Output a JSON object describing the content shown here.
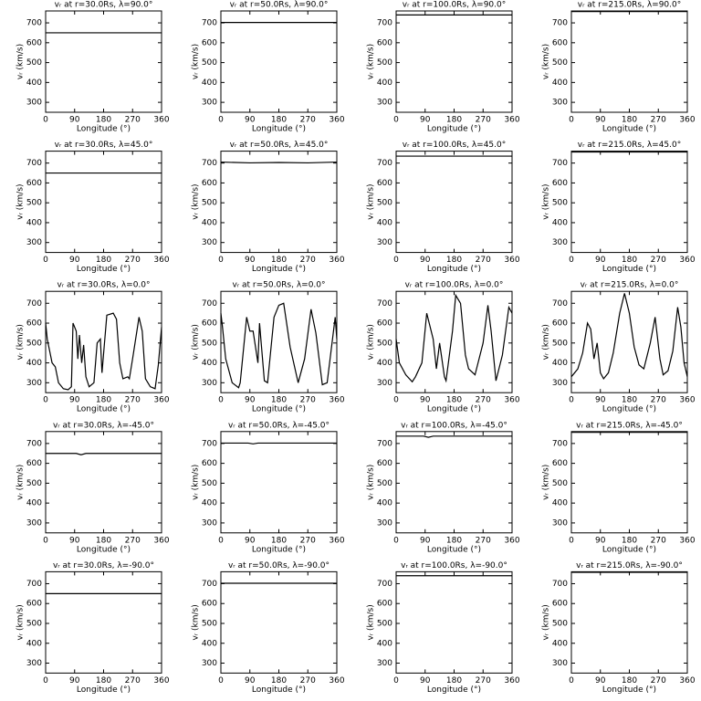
{
  "chart_data": [
    {
      "type": "line",
      "title": "vᵣ at r=30.0Rs, λ=90.0°",
      "xlabel": "Longitude (°)",
      "ylabel": "vᵣ (km/s)",
      "x": [
        0,
        360
      ],
      "values": [
        650,
        650
      ],
      "color": "#000000",
      "xlim": [
        0,
        360
      ],
      "ylim": [
        250,
        760
      ],
      "xticks": [
        0,
        90,
        180,
        270,
        360
      ],
      "yticks": [
        300,
        400,
        500,
        600,
        700
      ]
    },
    {
      "type": "line",
      "title": "vᵣ at r=50.0Rs, λ=90.0°",
      "xlabel": "Longitude (°)",
      "ylabel": "vᵣ (km/s)",
      "x": [
        0,
        360
      ],
      "values": [
        702,
        702
      ],
      "color": "#000000",
      "xlim": [
        0,
        360
      ],
      "ylim": [
        250,
        760
      ],
      "xticks": [
        0,
        90,
        180,
        270,
        360
      ],
      "yticks": [
        300,
        400,
        500,
        600,
        700
      ]
    },
    {
      "type": "line",
      "title": "vᵣ at r=100.0Rs, λ=90.0°",
      "xlabel": "Longitude (°)",
      "ylabel": "vᵣ (km/s)",
      "x": [
        0,
        360
      ],
      "values": [
        740,
        740
      ],
      "color": "#000000",
      "xlim": [
        0,
        360
      ],
      "ylim": [
        250,
        760
      ],
      "xticks": [
        0,
        90,
        180,
        270,
        360
      ],
      "yticks": [
        300,
        400,
        500,
        600,
        700
      ]
    },
    {
      "type": "line",
      "title": "vᵣ at r=215.0Rs, λ=90.0°",
      "xlabel": "Longitude (°)",
      "ylabel": "vᵣ (km/s)",
      "x": [
        0,
        360
      ],
      "values": [
        757,
        757
      ],
      "color": "#000000",
      "xlim": [
        0,
        360
      ],
      "ylim": [
        250,
        760
      ],
      "xticks": [
        0,
        90,
        180,
        270,
        360
      ],
      "yticks": [
        300,
        400,
        500,
        600,
        700
      ]
    },
    {
      "type": "line",
      "title": "vᵣ at r=30.0Rs, λ=45.0°",
      "xlabel": "Longitude (°)",
      "ylabel": "vᵣ (km/s)",
      "x": [
        0,
        360
      ],
      "values": [
        650,
        650
      ],
      "color": "#000000",
      "xlim": [
        0,
        360
      ],
      "ylim": [
        250,
        760
      ],
      "xticks": [
        0,
        90,
        180,
        270,
        360
      ],
      "yticks": [
        300,
        400,
        500,
        600,
        700
      ]
    },
    {
      "type": "line",
      "title": "vᵣ at r=50.0Rs, λ=45.0°",
      "xlabel": "Longitude (°)",
      "ylabel": "vᵣ (km/s)",
      "x": [
        0,
        90,
        180,
        270,
        360
      ],
      "values": [
        705,
        701,
        703,
        701,
        705
      ],
      "color": "#000000",
      "xlim": [
        0,
        360
      ],
      "ylim": [
        250,
        760
      ],
      "xticks": [
        0,
        90,
        180,
        270,
        360
      ],
      "yticks": [
        300,
        400,
        500,
        600,
        700
      ]
    },
    {
      "type": "line",
      "title": "vᵣ at r=100.0Rs, λ=45.0°",
      "xlabel": "Longitude (°)",
      "ylabel": "vᵣ (km/s)",
      "x": [
        0,
        360
      ],
      "values": [
        735,
        735
      ],
      "color": "#000000",
      "xlim": [
        0,
        360
      ],
      "ylim": [
        250,
        760
      ],
      "xticks": [
        0,
        90,
        180,
        270,
        360
      ],
      "yticks": [
        300,
        400,
        500,
        600,
        700
      ]
    },
    {
      "type": "line",
      "title": "vᵣ at r=215.0Rs, λ=45.0°",
      "xlabel": "Longitude (°)",
      "ylabel": "vᵣ (km/s)",
      "x": [
        0,
        360
      ],
      "values": [
        756,
        756
      ],
      "color": "#000000",
      "xlim": [
        0,
        360
      ],
      "ylim": [
        250,
        760
      ],
      "xticks": [
        0,
        90,
        180,
        270,
        360
      ],
      "yticks": [
        300,
        400,
        500,
        600,
        700
      ]
    },
    {
      "type": "line",
      "title": "vᵣ at r=30.0Rs, λ=0.0°",
      "xlabel": "Longitude (°)",
      "ylabel": "vᵣ (km/s)",
      "x": [
        0,
        5,
        20,
        30,
        40,
        55,
        70,
        80,
        85,
        95,
        100,
        105,
        112,
        118,
        125,
        135,
        150,
        160,
        170,
        175,
        190,
        210,
        220,
        230,
        240,
        255,
        260,
        270,
        290,
        300,
        310,
        325,
        340,
        350,
        360
      ],
      "values": [
        600,
        520,
        400,
        380,
        300,
        270,
        265,
        280,
        600,
        560,
        420,
        540,
        400,
        490,
        330,
        280,
        300,
        500,
        520,
        350,
        640,
        650,
        620,
        400,
        320,
        330,
        320,
        420,
        630,
        560,
        320,
        280,
        270,
        390,
        580
      ],
      "color": "#000000",
      "xlim": [
        0,
        360
      ],
      "ylim": [
        250,
        760
      ],
      "xticks": [
        0,
        90,
        180,
        270,
        360
      ],
      "yticks": [
        300,
        400,
        500,
        600,
        700
      ]
    },
    {
      "type": "line",
      "title": "vᵣ at r=50.0Rs, λ=0.0°",
      "xlabel": "Longitude (°)",
      "ylabel": "vᵣ (km/s)",
      "x": [
        0,
        5,
        15,
        35,
        55,
        60,
        80,
        90,
        100,
        115,
        120,
        135,
        145,
        165,
        180,
        195,
        215,
        240,
        260,
        280,
        295,
        315,
        330,
        355,
        360
      ],
      "values": [
        650,
        580,
        420,
        300,
        275,
        300,
        630,
        560,
        560,
        400,
        600,
        310,
        300,
        630,
        690,
        700,
        480,
        300,
        420,
        670,
        550,
        290,
        300,
        630,
        520
      ],
      "color": "#000000",
      "xlim": [
        0,
        360
      ],
      "ylim": [
        250,
        760
      ],
      "xticks": [
        0,
        90,
        180,
        270,
        360
      ],
      "yticks": [
        300,
        400,
        500,
        600,
        700
      ]
    },
    {
      "type": "line",
      "title": "vᵣ at r=100.0Rs, λ=0.0°",
      "xlabel": "Longitude (°)",
      "ylabel": "vᵣ (km/s)",
      "x": [
        0,
        10,
        30,
        50,
        60,
        80,
        95,
        115,
        125,
        135,
        150,
        155,
        175,
        185,
        200,
        215,
        225,
        245,
        270,
        285,
        295,
        310,
        330,
        350,
        360
      ],
      "values": [
        520,
        400,
        340,
        305,
        330,
        400,
        650,
        520,
        370,
        500,
        330,
        310,
        560,
        740,
        700,
        440,
        370,
        340,
        500,
        690,
        560,
        310,
        440,
        680,
        650
      ],
      "color": "#000000",
      "xlim": [
        0,
        360
      ],
      "ylim": [
        250,
        760
      ],
      "xticks": [
        0,
        90,
        180,
        270,
        360
      ],
      "yticks": [
        300,
        400,
        500,
        600,
        700
      ]
    },
    {
      "type": "line",
      "title": "vᵣ at r=215.0Rs, λ=0.0°",
      "xlabel": "Longitude (°)",
      "ylabel": "vᵣ (km/s)",
      "x": [
        0,
        10,
        20,
        35,
        50,
        60,
        70,
        80,
        90,
        100,
        115,
        130,
        150,
        165,
        180,
        195,
        210,
        225,
        245,
        260,
        275,
        285,
        300,
        315,
        330,
        340,
        350,
        360
      ],
      "values": [
        330,
        350,
        370,
        450,
        600,
        570,
        420,
        500,
        350,
        320,
        350,
        450,
        650,
        750,
        650,
        480,
        390,
        370,
        500,
        630,
        420,
        340,
        360,
        460,
        680,
        580,
        400,
        330
      ],
      "color": "#000000",
      "xlim": [
        0,
        360
      ],
      "ylim": [
        250,
        760
      ],
      "xticks": [
        0,
        90,
        180,
        270,
        360
      ],
      "yticks": [
        300,
        400,
        500,
        600,
        700
      ]
    },
    {
      "type": "line",
      "title": "vᵣ at r=30.0Rs, λ=-45.0°",
      "xlabel": "Longitude (°)",
      "ylabel": "vᵣ (km/s)",
      "x": [
        0,
        95,
        110,
        125,
        360
      ],
      "values": [
        650,
        650,
        643,
        650,
        650
      ],
      "color": "#000000",
      "xlim": [
        0,
        360
      ],
      "ylim": [
        250,
        760
      ],
      "xticks": [
        0,
        90,
        180,
        270,
        360
      ],
      "yticks": [
        300,
        400,
        500,
        600,
        700
      ]
    },
    {
      "type": "line",
      "title": "vᵣ at r=50.0Rs, λ=-45.0°",
      "xlabel": "Longitude (°)",
      "ylabel": "vᵣ (km/s)",
      "x": [
        0,
        85,
        100,
        115,
        360
      ],
      "values": [
        702,
        702,
        698,
        702,
        702
      ],
      "color": "#000000",
      "xlim": [
        0,
        360
      ],
      "ylim": [
        250,
        760
      ],
      "xticks": [
        0,
        90,
        180,
        270,
        360
      ],
      "yticks": [
        300,
        400,
        500,
        600,
        700
      ]
    },
    {
      "type": "line",
      "title": "vᵣ at r=100.0Rs, λ=-45.0°",
      "xlabel": "Longitude (°)",
      "ylabel": "vᵣ (km/s)",
      "x": [
        0,
        85,
        100,
        115,
        360
      ],
      "values": [
        737,
        737,
        731,
        737,
        737
      ],
      "color": "#000000",
      "xlim": [
        0,
        360
      ],
      "ylim": [
        250,
        760
      ],
      "xticks": [
        0,
        90,
        180,
        270,
        360
      ],
      "yticks": [
        300,
        400,
        500,
        600,
        700
      ]
    },
    {
      "type": "line",
      "title": "vᵣ at r=215.0Rs, λ=-45.0°",
      "xlabel": "Longitude (°)",
      "ylabel": "vᵣ (km/s)",
      "x": [
        0,
        360
      ],
      "values": [
        756,
        756
      ],
      "color": "#000000",
      "xlim": [
        0,
        360
      ],
      "ylim": [
        250,
        760
      ],
      "xticks": [
        0,
        90,
        180,
        270,
        360
      ],
      "yticks": [
        300,
        400,
        500,
        600,
        700
      ]
    },
    {
      "type": "line",
      "title": "vᵣ at r=30.0Rs, λ=-90.0°",
      "xlabel": "Longitude (°)",
      "ylabel": "vᵣ (km/s)",
      "x": [
        0,
        360
      ],
      "values": [
        650,
        650
      ],
      "color": "#000000",
      "xlim": [
        0,
        360
      ],
      "ylim": [
        250,
        760
      ],
      "xticks": [
        0,
        90,
        180,
        270,
        360
      ],
      "yticks": [
        300,
        400,
        500,
        600,
        700
      ]
    },
    {
      "type": "line",
      "title": "vᵣ at r=50.0Rs, λ=-90.0°",
      "xlabel": "Longitude (°)",
      "ylabel": "vᵣ (km/s)",
      "x": [
        0,
        360
      ],
      "values": [
        702,
        702
      ],
      "color": "#000000",
      "xlim": [
        0,
        360
      ],
      "ylim": [
        250,
        760
      ],
      "xticks": [
        0,
        90,
        180,
        270,
        360
      ],
      "yticks": [
        300,
        400,
        500,
        600,
        700
      ]
    },
    {
      "type": "line",
      "title": "vᵣ at r=100.0Rs, λ=-90.0°",
      "xlabel": "Longitude (°)",
      "ylabel": "vᵣ (km/s)",
      "x": [
        0,
        360
      ],
      "values": [
        740,
        740
      ],
      "color": "#000000",
      "xlim": [
        0,
        360
      ],
      "ylim": [
        250,
        760
      ],
      "xticks": [
        0,
        90,
        180,
        270,
        360
      ],
      "yticks": [
        300,
        400,
        500,
        600,
        700
      ]
    },
    {
      "type": "line",
      "title": "vᵣ at r=215.0Rs, λ=-90.0°",
      "xlabel": "Longitude (°)",
      "ylabel": "vᵣ (km/s)",
      "x": [
        0,
        360
      ],
      "values": [
        757,
        757
      ],
      "color": "#000000",
      "xlim": [
        0,
        360
      ],
      "ylim": [
        250,
        760
      ],
      "xticks": [
        0,
        90,
        180,
        270,
        360
      ],
      "yticks": [
        300,
        400,
        500,
        600,
        700
      ]
    }
  ]
}
